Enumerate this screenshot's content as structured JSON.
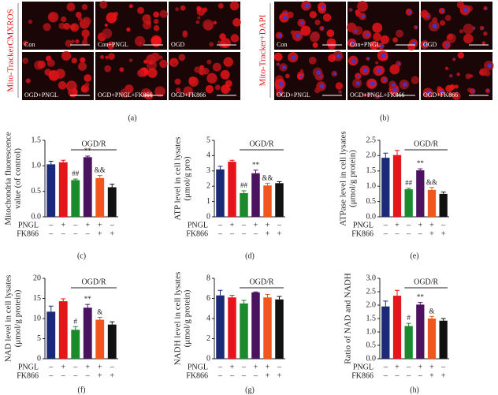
{
  "micrographs": [
    {
      "caption": "(a)",
      "stain": "Mito-TrackerCMXROS",
      "labels": [
        "Con",
        "Con+PNGL",
        "OGD",
        "OGD+PNGL",
        "OGD+PNGL+FK866",
        "OGD+FK866"
      ]
    },
    {
      "caption": "(b)",
      "stain": "Mito-Tracker+DAPI",
      "labels": [
        "Con",
        "Con+PNGL",
        "OGD",
        "OGD+PNGL",
        "OGD+PNGL+FK866",
        "OGD+FK866"
      ]
    }
  ],
  "chart_data": [
    {
      "type": "bar",
      "caption": "(c)",
      "ylabel": [
        "Mitochondria fluorescence",
        "value (of control)"
      ],
      "values": [
        1.03,
        1.07,
        0.72,
        1.17,
        0.76,
        0.58
      ],
      "errors": [
        0.06,
        0.04,
        0.02,
        0.02,
        0.05,
        0.06
      ],
      "colors": [
        "#1b2a78",
        "#e3161c",
        "#1c8a2c",
        "#4b1260",
        "#f0571f",
        "#111111"
      ],
      "annotations": [
        null,
        null,
        "##",
        "**",
        "&&",
        null
      ],
      "ylim": [
        0,
        1.5
      ],
      "yticks": [
        {
          "value": 0,
          "label": "0.0"
        },
        0.5,
        {
          "value": 1,
          "label": "1.0"
        },
        1.5
      ],
      "group_label": "OGD/R",
      "treatments": [
        {
          "name": "PNGL",
          "marks": [
            "–",
            "+",
            "–",
            "+",
            "+",
            "–"
          ]
        },
        {
          "name": "FK866",
          "marks": [
            "–",
            "–",
            "–",
            "–",
            "+",
            "+"
          ]
        }
      ]
    },
    {
      "type": "bar",
      "caption": "(d)",
      "ylabel": [
        "ATP level in cell lysates",
        "(μmol/g pro)"
      ],
      "values": [
        3.1,
        3.6,
        1.55,
        2.85,
        2.05,
        2.2
      ],
      "errors": [
        0.2,
        0.1,
        0.15,
        0.2,
        0.15,
        0.1
      ],
      "colors": [
        "#1b2a78",
        "#e3161c",
        "#1c8a2c",
        "#4b1260",
        "#f0571f",
        "#111111"
      ],
      "annotations": [
        null,
        null,
        "##",
        "**",
        "&&",
        null
      ],
      "ylim": [
        0,
        5
      ],
      "yticks": [
        0,
        1,
        2,
        3,
        4,
        5
      ],
      "group_label": "OGD/R",
      "treatments": [
        {
          "name": "PNGL",
          "marks": [
            "–",
            "+",
            "–",
            "+",
            "+",
            "–"
          ]
        },
        {
          "name": "FK866",
          "marks": [
            "–",
            "–",
            "–",
            "–",
            "+",
            "+"
          ]
        }
      ]
    },
    {
      "type": "bar",
      "caption": "(e)",
      "ylabel": [
        "ATPase level in cell lysates",
        "(μmol/g protein)"
      ],
      "values": [
        1.93,
        2.02,
        0.9,
        1.52,
        0.88,
        0.75
      ],
      "errors": [
        0.15,
        0.15,
        0.03,
        0.05,
        0.08,
        0.06
      ],
      "colors": [
        "#1b2a78",
        "#e3161c",
        "#1c8a2c",
        "#4b1260",
        "#f0571f",
        "#111111"
      ],
      "annotations": [
        null,
        null,
        "##",
        "**",
        "&&",
        null
      ],
      "ylim": [
        0,
        2.5
      ],
      "yticks": [
        {
          "value": 0,
          "label": "0.0"
        },
        0.5,
        {
          "value": 1,
          "label": "1.0"
        },
        1.5,
        {
          "value": 2,
          "label": "2.0"
        },
        2.5
      ],
      "group_label": "OGD/R",
      "treatments": [
        {
          "name": "PNGL",
          "marks": [
            "–",
            "+",
            "–",
            "+",
            "+",
            "–"
          ]
        },
        {
          "name": "FK866",
          "marks": [
            "–",
            "–",
            "–",
            "–",
            "+",
            "+"
          ]
        }
      ]
    },
    {
      "type": "bar",
      "caption": "(f)",
      "ylabel": [
        "NAD level in cell lysates",
        "(μmol/g protein)"
      ],
      "values": [
        11.7,
        14.3,
        7.2,
        12.7,
        9.7,
        8.5
      ],
      "errors": [
        1.4,
        0.6,
        0.8,
        0.8,
        0.6,
        0.7
      ],
      "colors": [
        "#1b2a78",
        "#e3161c",
        "#1c8a2c",
        "#4b1260",
        "#f0571f",
        "#111111"
      ],
      "annotations": [
        null,
        null,
        "#",
        "**",
        "&",
        null
      ],
      "ylim": [
        0,
        20
      ],
      "yticks": [
        0,
        5,
        10,
        15,
        20
      ],
      "group_label": "OGD/R",
      "treatments": [
        {
          "name": "PNGL",
          "marks": [
            "–",
            "+",
            "–",
            "+",
            "+",
            "–"
          ]
        },
        {
          "name": "FK866",
          "marks": [
            "–",
            "–",
            "–",
            "–",
            "+",
            "+"
          ]
        }
      ]
    },
    {
      "type": "bar",
      "caption": "(g)",
      "ylabel": [
        "NADH level in cell lysates",
        "(μmol/g protein)"
      ],
      "values": [
        6.3,
        6.1,
        5.5,
        6.6,
        6.1,
        5.9
      ],
      "errors": [
        0.5,
        0.2,
        0.3,
        0.05,
        0.3,
        0.3
      ],
      "colors": [
        "#1b2a78",
        "#e3161c",
        "#1c8a2c",
        "#4b1260",
        "#f0571f",
        "#111111"
      ],
      "ylim": [
        0,
        8
      ],
      "yticks": [
        0,
        2,
        4,
        6,
        8
      ],
      "group_label": "OGD/R",
      "treatments": [
        {
          "name": "PNGL",
          "marks": [
            "–",
            "+",
            "–",
            "+",
            "+",
            "–"
          ]
        },
        {
          "name": "FK866",
          "marks": [
            "–",
            "–",
            "–",
            "–",
            "+",
            "+"
          ]
        }
      ]
    },
    {
      "type": "bar",
      "caption": "(h)",
      "ylabel": [
        "Ratio of NAD and NADH"
      ],
      "values": [
        1.95,
        2.35,
        1.22,
        2.02,
        1.5,
        1.42
      ],
      "errors": [
        0.2,
        0.2,
        0.1,
        0.08,
        0.08,
        0.08
      ],
      "colors": [
        "#1b2a78",
        "#e3161c",
        "#1c8a2c",
        "#4b1260",
        "#f0571f",
        "#111111"
      ],
      "annotations": [
        null,
        null,
        "#",
        "**",
        "&",
        null
      ],
      "ylim": [
        0,
        3
      ],
      "yticks": [
        {
          "value": 0,
          "label": "0.0"
        },
        0.5,
        {
          "value": 1,
          "label": "1.0"
        },
        1.5,
        {
          "value": 2,
          "label": "2.0"
        },
        2.5,
        {
          "value": 3,
          "label": "3.0"
        }
      ],
      "group_label": "OGD/R",
      "treatments": [
        {
          "name": "PNGL",
          "marks": [
            "–",
            "+",
            "–",
            "+",
            "+",
            "–"
          ]
        },
        {
          "name": "FK866",
          "marks": [
            "–",
            "–",
            "–",
            "–",
            "+",
            "+"
          ]
        }
      ]
    }
  ]
}
